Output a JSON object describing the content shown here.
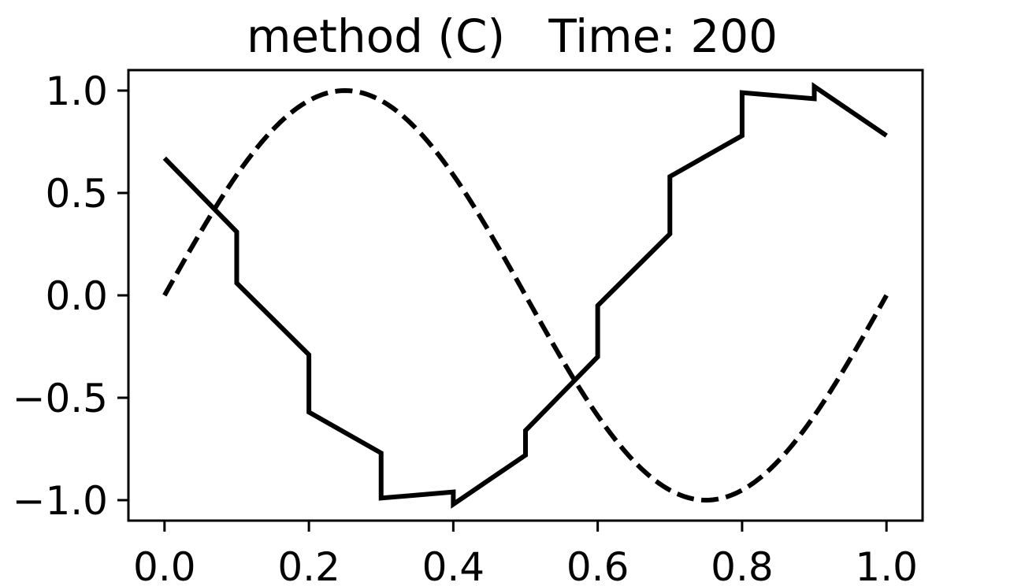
{
  "chart_data": {
    "type": "line",
    "title": "method (C)   Time: 200",
    "xlabel": "",
    "ylabel": "",
    "xlim": [
      -0.05,
      1.05
    ],
    "ylim": [
      -1.1,
      1.1
    ],
    "xticks": [
      0.0,
      0.2,
      0.4,
      0.6,
      0.8,
      1.0
    ],
    "xtick_labels": [
      "0.0",
      "0.2",
      "0.4",
      "0.6",
      "0.8",
      "1.0"
    ],
    "yticks": [
      1.0,
      0.5,
      0.0,
      -0.5,
      -1.0
    ],
    "ytick_labels": [
      "1.0",
      "0.5",
      "0.0",
      "−0.5",
      "−1.0"
    ],
    "grid": false,
    "legend": "none",
    "series": [
      {
        "style": "solid",
        "color": "#000000",
        "x": [
          0.0,
          0.1,
          0.1,
          0.2,
          0.2,
          0.3,
          0.3,
          0.4,
          0.4,
          0.5,
          0.5,
          0.6,
          0.6,
          0.7,
          0.7,
          0.8,
          0.8,
          0.9,
          0.9,
          1.0
        ],
        "y": [
          0.67,
          0.31,
          0.06,
          -0.29,
          -0.57,
          -0.77,
          -0.99,
          -0.96,
          -1.02,
          -0.78,
          -0.66,
          -0.3,
          -0.05,
          0.3,
          0.58,
          0.78,
          0.99,
          0.96,
          1.02,
          0.78
        ]
      },
      {
        "style": "dashed",
        "color": "#000000",
        "function": "sin(2*pi*x)",
        "x_range": [
          0.0,
          1.0
        ]
      }
    ]
  }
}
